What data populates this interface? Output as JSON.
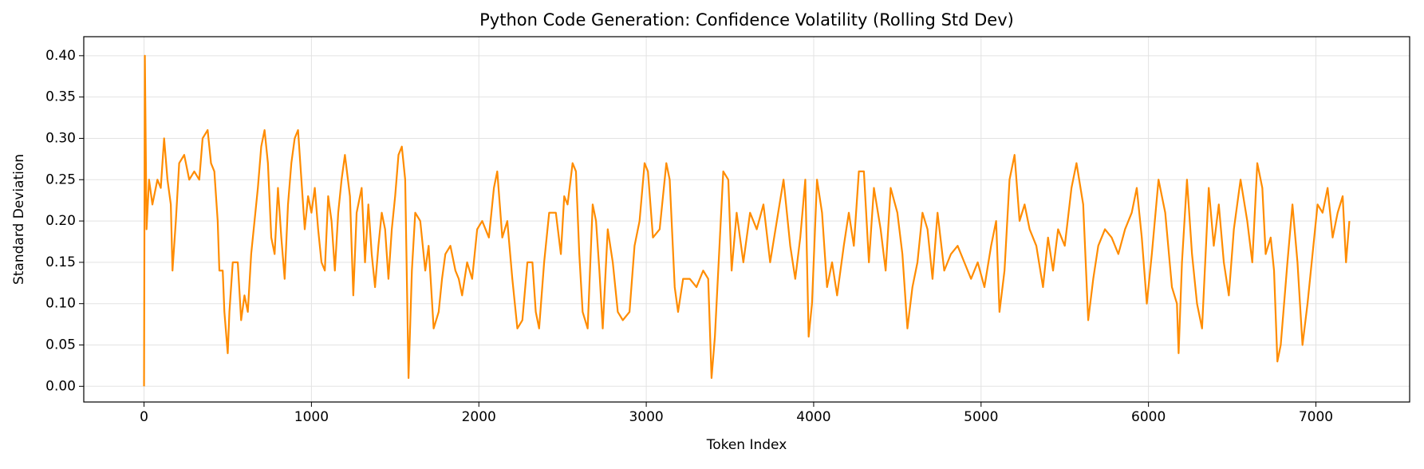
{
  "chart_data": {
    "type": "line",
    "title": "Python Code Generation: Confidence Volatility (Rolling Std Dev)",
    "x_label": "Token Index",
    "y_label": "Standard Deviation",
    "grid": true,
    "xlim": [
      -360,
      7560
    ],
    "ylim": [
      -0.019,
      0.423
    ],
    "xticks": [
      0,
      1000,
      2000,
      3000,
      4000,
      5000,
      6000,
      7000
    ],
    "yticks": [
      {
        "value": 0,
        "label": "0.00"
      },
      0.05,
      {
        "value": 0.1,
        "label": "0.10"
      },
      0.15,
      {
        "value": 0.2,
        "label": "0.20"
      },
      0.25,
      {
        "value": 0.3,
        "label": "0.30"
      },
      0.35,
      {
        "value": 0.4,
        "label": "0.40"
      }
    ],
    "x": [
      0,
      5,
      15,
      30,
      50,
      80,
      100,
      120,
      140,
      160,
      170,
      190,
      210,
      240,
      270,
      300,
      330,
      350,
      380,
      400,
      420,
      440,
      450,
      470,
      480,
      500,
      510,
      530,
      560,
      580,
      600,
      620,
      640,
      660,
      680,
      700,
      720,
      740,
      760,
      780,
      800,
      820,
      840,
      860,
      880,
      900,
      920,
      940,
      960,
      980,
      1000,
      1020,
      1040,
      1060,
      1080,
      1100,
      1120,
      1140,
      1160,
      1180,
      1200,
      1230,
      1250,
      1270,
      1300,
      1320,
      1340,
      1360,
      1380,
      1400,
      1420,
      1440,
      1460,
      1480,
      1500,
      1520,
      1540,
      1560,
      1570,
      1580,
      1600,
      1620,
      1650,
      1680,
      1700,
      1730,
      1760,
      1780,
      1800,
      1830,
      1860,
      1880,
      1900,
      1930,
      1960,
      1990,
      2020,
      2060,
      2090,
      2110,
      2140,
      2170,
      2200,
      2230,
      2260,
      2290,
      2320,
      2340,
      2360,
      2390,
      2420,
      2460,
      2490,
      2510,
      2530,
      2560,
      2580,
      2600,
      2620,
      2650,
      2680,
      2700,
      2720,
      2740,
      2770,
      2800,
      2830,
      2860,
      2900,
      2930,
      2960,
      2990,
      3010,
      3040,
      3080,
      3120,
      3140,
      3170,
      3190,
      3220,
      3260,
      3300,
      3340,
      3370,
      3390,
      3410,
      3440,
      3460,
      3490,
      3510,
      3540,
      3580,
      3620,
      3660,
      3700,
      3740,
      3780,
      3820,
      3860,
      3890,
      3920,
      3950,
      3970,
      3990,
      4020,
      4050,
      4080,
      4110,
      4140,
      4180,
      4210,
      4240,
      4270,
      4300,
      4330,
      4360,
      4400,
      4430,
      4460,
      4500,
      4530,
      4560,
      4590,
      4620,
      4650,
      4680,
      4710,
      4740,
      4780,
      4820,
      4860,
      4900,
      4940,
      4980,
      5020,
      5060,
      5090,
      5110,
      5140,
      5170,
      5200,
      5230,
      5260,
      5290,
      5330,
      5370,
      5400,
      5430,
      5460,
      5500,
      5540,
      5570,
      5610,
      5640,
      5670,
      5700,
      5740,
      5780,
      5820,
      5860,
      5900,
      5930,
      5960,
      5990,
      6020,
      6060,
      6100,
      6140,
      6170,
      6180,
      6200,
      6230,
      6260,
      6290,
      6320,
      6360,
      6390,
      6420,
      6450,
      6480,
      6510,
      6550,
      6590,
      6620,
      6650,
      6680,
      6700,
      6730,
      6750,
      6770,
      6790,
      6830,
      6860,
      6890,
      6920,
      6950,
      6980,
      7010,
      7040,
      7070,
      7100,
      7130,
      7160,
      7180,
      7200
    ],
    "series": [
      {
        "color": "#ff8c00",
        "values": [
          0.0,
          0.4,
          0.19,
          0.25,
          0.22,
          0.25,
          0.24,
          0.3,
          0.25,
          0.22,
          0.14,
          0.2,
          0.27,
          0.28,
          0.25,
          0.26,
          0.25,
          0.3,
          0.31,
          0.27,
          0.26,
          0.2,
          0.14,
          0.14,
          0.09,
          0.04,
          0.09,
          0.15,
          0.15,
          0.08,
          0.11,
          0.09,
          0.16,
          0.2,
          0.24,
          0.29,
          0.31,
          0.27,
          0.18,
          0.16,
          0.24,
          0.18,
          0.13,
          0.22,
          0.27,
          0.3,
          0.31,
          0.25,
          0.19,
          0.23,
          0.21,
          0.24,
          0.19,
          0.15,
          0.14,
          0.23,
          0.2,
          0.14,
          0.21,
          0.25,
          0.28,
          0.23,
          0.11,
          0.21,
          0.24,
          0.15,
          0.22,
          0.16,
          0.12,
          0.17,
          0.21,
          0.19,
          0.13,
          0.19,
          0.23,
          0.28,
          0.29,
          0.25,
          0.13,
          0.01,
          0.14,
          0.21,
          0.2,
          0.14,
          0.17,
          0.07,
          0.09,
          0.13,
          0.16,
          0.17,
          0.14,
          0.13,
          0.11,
          0.15,
          0.13,
          0.19,
          0.2,
          0.18,
          0.24,
          0.26,
          0.18,
          0.2,
          0.13,
          0.07,
          0.08,
          0.15,
          0.15,
          0.09,
          0.07,
          0.15,
          0.21,
          0.21,
          0.16,
          0.23,
          0.22,
          0.27,
          0.26,
          0.16,
          0.09,
          0.07,
          0.22,
          0.2,
          0.14,
          0.07,
          0.19,
          0.15,
          0.09,
          0.08,
          0.09,
          0.17,
          0.2,
          0.27,
          0.26,
          0.18,
          0.19,
          0.27,
          0.25,
          0.12,
          0.09,
          0.13,
          0.13,
          0.12,
          0.14,
          0.13,
          0.01,
          0.06,
          0.18,
          0.26,
          0.25,
          0.14,
          0.21,
          0.15,
          0.21,
          0.19,
          0.22,
          0.15,
          0.2,
          0.25,
          0.17,
          0.13,
          0.18,
          0.25,
          0.06,
          0.1,
          0.25,
          0.21,
          0.12,
          0.15,
          0.11,
          0.17,
          0.21,
          0.17,
          0.26,
          0.26,
          0.15,
          0.24,
          0.19,
          0.14,
          0.24,
          0.21,
          0.16,
          0.07,
          0.12,
          0.15,
          0.21,
          0.19,
          0.13,
          0.21,
          0.14,
          0.16,
          0.17,
          0.15,
          0.13,
          0.15,
          0.12,
          0.17,
          0.2,
          0.09,
          0.14,
          0.25,
          0.28,
          0.2,
          0.22,
          0.19,
          0.17,
          0.12,
          0.18,
          0.14,
          0.19,
          0.17,
          0.24,
          0.27,
          0.22,
          0.08,
          0.13,
          0.17,
          0.19,
          0.18,
          0.16,
          0.19,
          0.21,
          0.24,
          0.18,
          0.1,
          0.16,
          0.25,
          0.21,
          0.12,
          0.1,
          0.04,
          0.15,
          0.25,
          0.16,
          0.1,
          0.07,
          0.24,
          0.17,
          0.22,
          0.15,
          0.11,
          0.19,
          0.25,
          0.2,
          0.15,
          0.27,
          0.24,
          0.16,
          0.18,
          0.14,
          0.03,
          0.05,
          0.15,
          0.22,
          0.15,
          0.05,
          0.1,
          0.16,
          0.22,
          0.21,
          0.24,
          0.18,
          0.21,
          0.23,
          0.15,
          0.2
        ]
      }
    ]
  }
}
